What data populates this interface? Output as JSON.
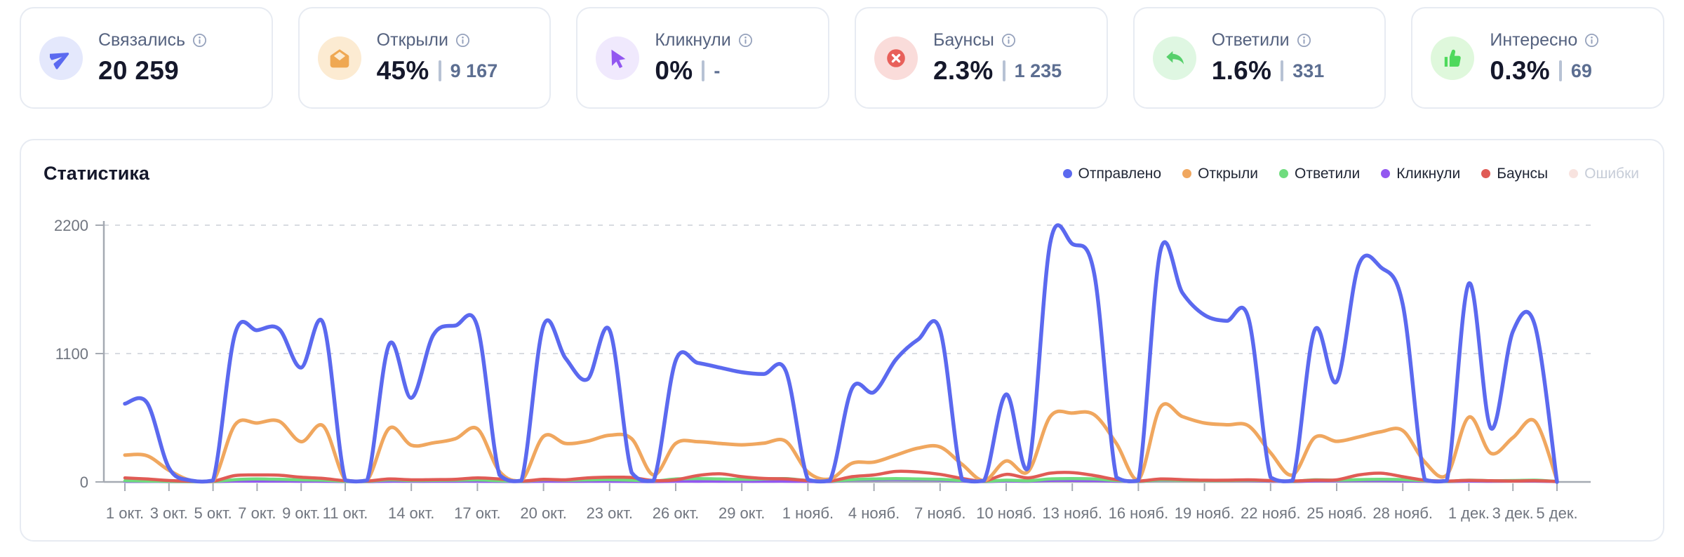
{
  "cards": [
    {
      "label": "Связались",
      "value": "20 259",
      "secondary": null,
      "icon": "send-icon",
      "accent": "#5B6AF0",
      "circle_bg": "#E4E8FC"
    },
    {
      "label": "Открыли",
      "value": "45%",
      "secondary": "9 167",
      "icon": "mail-open-icon",
      "accent": "#EFA853",
      "circle_bg": "#FCEBD2"
    },
    {
      "label": "Кликнули",
      "value": "0%",
      "secondary": "-",
      "icon": "cursor-icon",
      "accent": "#9257F0",
      "circle_bg": "#F0E9FD"
    },
    {
      "label": "Баунсы",
      "value": "2.3%",
      "secondary": "1 235",
      "icon": "x-circle-icon",
      "accent": "#E8605A",
      "circle_bg": "#FADCDA"
    },
    {
      "label": "Ответили",
      "value": "1.6%",
      "secondary": "331",
      "icon": "reply-icon",
      "accent": "#56D06B",
      "circle_bg": "#DFF7E2"
    },
    {
      "label": "Интересно",
      "value": "0.3%",
      "secondary": "69",
      "icon": "thumbs-up-icon",
      "accent": "#4ED95C",
      "circle_bg": "#DFF8DC"
    }
  ],
  "chart": {
    "title": "Статистика"
  },
  "chart_data": {
    "type": "line",
    "title": "Статистика",
    "x_start": "1 окт.",
    "x_end": "5 дек.",
    "n_points": 66,
    "ylim": [
      0,
      2200
    ],
    "y_ticks": [
      0,
      1100,
      2200
    ],
    "grid": "dashed horizontal at 1100 and 2200",
    "legend_position": "top-right",
    "axis_color": "#A5AAB2",
    "grid_color": "#D8DBE1",
    "tick_label_color": "#70757F",
    "x_ticks": [
      {
        "label": "1 окт.",
        "index": 0
      },
      {
        "label": "3 окт.",
        "index": 2
      },
      {
        "label": "5 окт.",
        "index": 4
      },
      {
        "label": "7 окт.",
        "index": 6
      },
      {
        "label": "9 окт.",
        "index": 8
      },
      {
        "label": "11 окт.",
        "index": 10
      },
      {
        "label": "14 окт.",
        "index": 13
      },
      {
        "label": "17 окт.",
        "index": 16
      },
      {
        "label": "20 окт.",
        "index": 19
      },
      {
        "label": "23 окт.",
        "index": 22
      },
      {
        "label": "26 окт.",
        "index": 25
      },
      {
        "label": "29 окт.",
        "index": 28
      },
      {
        "label": "1 нояб.",
        "index": 31
      },
      {
        "label": "4 нояб.",
        "index": 34
      },
      {
        "label": "7 нояб.",
        "index": 37
      },
      {
        "label": "10 нояб.",
        "index": 40
      },
      {
        "label": "13 нояб.",
        "index": 43
      },
      {
        "label": "16 нояб.",
        "index": 46
      },
      {
        "label": "19 нояб.",
        "index": 49
      },
      {
        "label": "22 нояб.",
        "index": 52
      },
      {
        "label": "25 нояб.",
        "index": 55
      },
      {
        "label": "28 нояб.",
        "index": 58
      },
      {
        "label": "1 дек.",
        "index": 61
      },
      {
        "label": "3 дек.",
        "index": 63
      },
      {
        "label": "5 дек.",
        "index": 65
      }
    ],
    "series": [
      {
        "key": "sent",
        "name": "Отправлено",
        "color": "#5B69EF",
        "width": 5.5,
        "hidden": false,
        "values": [
          670,
          680,
          120,
          12,
          12,
          1270,
          1300,
          1310,
          980,
          1360,
          15,
          15,
          1180,
          720,
          1260,
          1340,
          1330,
          60,
          12,
          1340,
          1060,
          880,
          1300,
          80,
          12,
          1040,
          1020,
          980,
          940,
          925,
          950,
          20,
          12,
          800,
          770,
          1050,
          1220,
          1300,
          20,
          12,
          750,
          120,
          2050,
          2040,
          1780,
          40,
          12,
          1980,
          1620,
          1430,
          1380,
          1400,
          40,
          12,
          1300,
          860,
          1860,
          1840,
          1520,
          20,
          12,
          1700,
          460,
          1290,
          1340,
          0
        ]
      },
      {
        "key": "opened",
        "name": "Открыли",
        "color": "#F0A75F",
        "width": 5,
        "hidden": false,
        "values": [
          230,
          225,
          100,
          12,
          6,
          490,
          505,
          520,
          345,
          480,
          18,
          15,
          460,
          315,
          335,
          370,
          455,
          90,
          12,
          390,
          330,
          350,
          400,
          370,
          60,
          330,
          345,
          330,
          318,
          332,
          348,
          85,
          25,
          160,
          170,
          230,
          290,
          300,
          150,
          12,
          180,
          90,
          560,
          590,
          575,
          330,
          18,
          640,
          560,
          505,
          490,
          480,
          250,
          60,
          380,
          348,
          385,
          430,
          440,
          170,
          60,
          555,
          245,
          380,
          520,
          15
        ]
      },
      {
        "key": "replied",
        "name": "Ответили",
        "color": "#6FDC7E",
        "width": 4.5,
        "hidden": false,
        "values": [
          10,
          8,
          5,
          3,
          3,
          20,
          25,
          22,
          18,
          15,
          5,
          5,
          18,
          12,
          14,
          15,
          18,
          10,
          5,
          20,
          15,
          18,
          20,
          15,
          8,
          25,
          28,
          25,
          22,
          25,
          28,
          12,
          6,
          20,
          25,
          28,
          25,
          22,
          12,
          5,
          15,
          10,
          25,
          28,
          25,
          12,
          5,
          18,
          15,
          12,
          12,
          15,
          10,
          5,
          18,
          15,
          20,
          22,
          20,
          10,
          5,
          15,
          10,
          12,
          15,
          4
        ]
      },
      {
        "key": "clicked",
        "name": "Кликнули",
        "color": "#9257F0",
        "width": 4,
        "hidden": false,
        "values": [
          3,
          3,
          2,
          2,
          2,
          6,
          6,
          6,
          5,
          5,
          2,
          2,
          5,
          4,
          4,
          5,
          5,
          3,
          2,
          5,
          4,
          4,
          5,
          3,
          2,
          5,
          5,
          5,
          4,
          4,
          5,
          3,
          2,
          15,
          18,
          20,
          18,
          15,
          6,
          2,
          8,
          5,
          12,
          12,
          10,
          5,
          2,
          15,
          14,
          12,
          10,
          10,
          5,
          2,
          8,
          8,
          10,
          10,
          8,
          4,
          2,
          6,
          5,
          6,
          6,
          2
        ]
      },
      {
        "key": "bounced",
        "name": "Баунсы",
        "color": "#E05B55",
        "width": 4.5,
        "hidden": false,
        "values": [
          35,
          25,
          12,
          6,
          6,
          55,
          60,
          58,
          40,
          30,
          10,
          8,
          25,
          18,
          20,
          22,
          35,
          25,
          8,
          22,
          18,
          35,
          40,
          38,
          12,
          18,
          55,
          70,
          45,
          30,
          26,
          12,
          8,
          45,
          60,
          90,
          85,
          65,
          30,
          8,
          65,
          35,
          75,
          80,
          55,
          20,
          8,
          25,
          20,
          15,
          15,
          18,
          12,
          8,
          15,
          18,
          60,
          75,
          45,
          15,
          8,
          14,
          10,
          8,
          10,
          4
        ]
      },
      {
        "key": "errors",
        "name": "Ошибки",
        "color": "#F8E3DF",
        "width": 4,
        "hidden": true,
        "values": [
          0,
          0,
          0,
          0,
          0,
          0,
          0,
          0,
          0,
          0,
          0,
          0,
          0,
          0,
          0,
          0,
          0,
          0,
          0,
          0,
          0,
          0,
          0,
          0,
          0,
          0,
          0,
          0,
          0,
          0,
          0,
          0,
          0,
          0,
          0,
          0,
          0,
          0,
          0,
          0,
          0,
          0,
          0,
          0,
          0,
          0,
          0,
          0,
          0,
          0,
          0,
          0,
          0,
          0,
          0,
          0,
          0,
          0,
          0,
          0,
          0,
          0,
          0,
          0,
          0,
          0
        ]
      }
    ]
  }
}
